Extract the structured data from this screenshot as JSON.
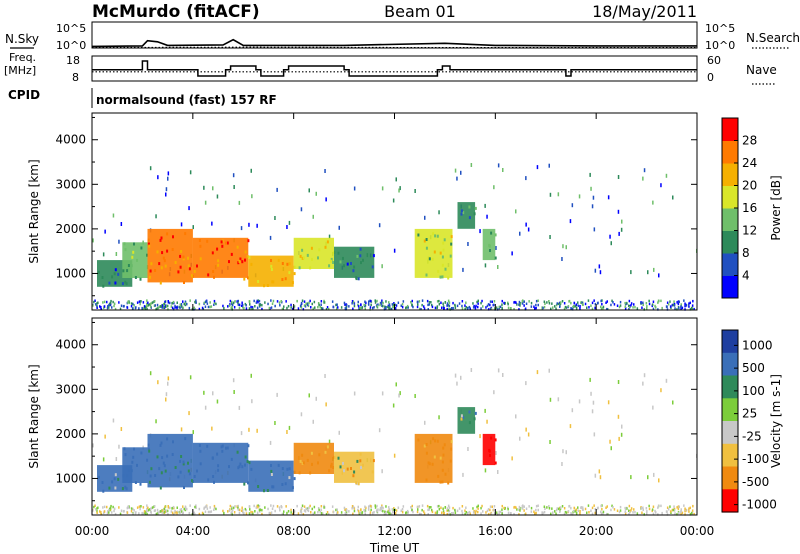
{
  "header": {
    "station": "McMurdo (fitACF)",
    "beam": "Beam 01",
    "date": "18/May/2011"
  },
  "strip_panels": {
    "nsky_label": "N.Sky",
    "nsearch_label": "N.Search",
    "noise_tick_top": "10^5",
    "noise_tick_bottom": "10^0",
    "freq_label_1": "Freq.",
    "freq_label_2": "[MHz]",
    "freq_ticks": [
      "18",
      "8"
    ],
    "nave_label": "Nave",
    "nave_ticks": [
      "60",
      "0"
    ],
    "cpid_label": "CPID",
    "cpid_text": "normalsound (fast) 157 RF"
  },
  "colors": {
    "power_scale": [
      "#0000ff",
      "#2050c0",
      "#2d8a5a",
      "#6fbf6a",
      "#d9e629",
      "#f5b000",
      "#ff7a00",
      "#ff0000"
    ],
    "velocity_scale": [
      "#1f3fa0",
      "#3a6fb8",
      "#2f8a5a",
      "#7ccd3a",
      "#c8c8c8",
      "#f0c040",
      "#f08a10",
      "#ff0000"
    ]
  },
  "chart_data": [
    {
      "type": "line",
      "title": "N.Sky / N.Search",
      "x_unit": "hours UT",
      "xlim": [
        0,
        24
      ],
      "ylim_log10": [
        0,
        5
      ],
      "series": [
        {
          "name": "N.Sky",
          "x": [
            0,
            2,
            2.2,
            2.6,
            3,
            5.2,
            5.6,
            6,
            10,
            14,
            16,
            20,
            24
          ],
          "y": [
            0.3,
            0.4,
            1.4,
            1.2,
            0.5,
            0.6,
            1.6,
            0.5,
            0.5,
            0.9,
            0.5,
            0.4,
            0.4
          ]
        },
        {
          "name": "N.Search",
          "x": [
            0,
            6,
            12,
            18,
            24
          ],
          "y": [
            0.1,
            0.15,
            0.1,
            0.1,
            0.1
          ]
        }
      ]
    },
    {
      "type": "line",
      "title": "Freq. / Nave",
      "xlim": [
        0,
        24
      ],
      "ylim_freq": [
        8,
        18
      ],
      "ylim_nave": [
        0,
        60
      ],
      "series": [
        {
          "name": "Freq.",
          "x": [
            0,
            1.8,
            2,
            2.2,
            4,
            4.2,
            5.3,
            5.5,
            6.5,
            6.7,
            7.6,
            7.8,
            10,
            10.2,
            13.7,
            13.9,
            14.2,
            14.4,
            18.8,
            19,
            24
          ],
          "y": [
            12.5,
            12.5,
            16,
            12.5,
            12.5,
            10,
            12.5,
            14,
            12.5,
            10,
            12.5,
            14,
            12.5,
            10,
            12.5,
            14,
            12.5,
            12.5,
            10,
            12.5,
            12.5
          ]
        },
        {
          "name": "Nave",
          "x": [
            0,
            24
          ],
          "y": [
            22,
            22
          ]
        }
      ]
    },
    {
      "type": "heatmap",
      "title": "Power [dB]",
      "xlabel": "Time UT",
      "ylabel": "Slant Range [km]",
      "xlim": [
        0,
        24
      ],
      "ylim": [
        180,
        4600
      ],
      "x_ticks": [
        "00:00",
        "04:00",
        "08:00",
        "12:00",
        "16:00",
        "20:00",
        "00:00"
      ],
      "y_ticks": [
        1000,
        2000,
        3000,
        4000
      ],
      "colorbar_label": "Power [dB]",
      "colorbar_ticks": [
        4,
        8,
        12,
        16,
        20,
        24,
        28
      ],
      "colorbar_range": [
        0,
        32
      ],
      "regions": [
        {
          "t0": 0.2,
          "t1": 1.6,
          "r0": 700,
          "r1": 1300,
          "value": 8
        },
        {
          "t0": 1.2,
          "t1": 2.2,
          "r0": 900,
          "r1": 1700,
          "value": 14
        },
        {
          "t0": 2.2,
          "t1": 4.0,
          "r0": 800,
          "r1": 2000,
          "value": 26
        },
        {
          "t0": 4.0,
          "t1": 6.2,
          "r0": 900,
          "r1": 1800,
          "value": 26
        },
        {
          "t0": 6.2,
          "t1": 8.0,
          "r0": 700,
          "r1": 1400,
          "value": 22
        },
        {
          "t0": 8.0,
          "t1": 9.6,
          "r0": 1100,
          "r1": 1800,
          "value": 18
        },
        {
          "t0": 9.6,
          "t1": 11.2,
          "r0": 900,
          "r1": 1600,
          "value": 8
        },
        {
          "t0": 12.8,
          "t1": 14.3,
          "r0": 900,
          "r1": 2000,
          "value": 16
        },
        {
          "t0": 14.5,
          "t1": 15.2,
          "r0": 2000,
          "r1": 2600,
          "value": 10
        },
        {
          "t0": 15.5,
          "t1": 16.0,
          "r0": 1300,
          "r1": 2000,
          "value": 12
        }
      ]
    },
    {
      "type": "heatmap",
      "title": "Velocity [m s-1]",
      "xlabel": "Time UT",
      "ylabel": "Slant Range [km]",
      "xlim": [
        0,
        24
      ],
      "ylim": [
        180,
        4600
      ],
      "x_ticks": [
        "00:00",
        "04:00",
        "08:00",
        "12:00",
        "16:00",
        "20:00",
        "00:00"
      ],
      "y_ticks": [
        1000,
        2000,
        3000,
        4000
      ],
      "colorbar_label": "Velocity [m s-1]",
      "colorbar_ticks": [
        "1000",
        "500",
        "100",
        "25",
        "-25",
        "-100",
        "-500",
        "-1000"
      ],
      "regions": [
        {
          "t0": 0.2,
          "t1": 1.6,
          "r0": 700,
          "r1": 1300,
          "value": 100
        },
        {
          "t0": 1.2,
          "t1": 2.2,
          "r0": 900,
          "r1": 1700,
          "value": 300
        },
        {
          "t0": 2.2,
          "t1": 4.0,
          "r0": 800,
          "r1": 2000,
          "value": 150
        },
        {
          "t0": 4.0,
          "t1": 6.2,
          "r0": 900,
          "r1": 1800,
          "value": 200
        },
        {
          "t0": 6.2,
          "t1": 8.0,
          "r0": 700,
          "r1": 1400,
          "value": 120
        },
        {
          "t0": 8.0,
          "t1": 9.6,
          "r0": 1100,
          "r1": 1800,
          "value": -150
        },
        {
          "t0": 9.6,
          "t1": 11.2,
          "r0": 900,
          "r1": 1600,
          "value": -60
        },
        {
          "t0": 12.8,
          "t1": 14.3,
          "r0": 900,
          "r1": 2000,
          "value": -200
        },
        {
          "t0": 14.5,
          "t1": 15.2,
          "r0": 2000,
          "r1": 2600,
          "value": 80
        },
        {
          "t0": 15.5,
          "t1": 16.0,
          "r0": 1300,
          "r1": 2000,
          "value": -600
        }
      ]
    }
  ]
}
